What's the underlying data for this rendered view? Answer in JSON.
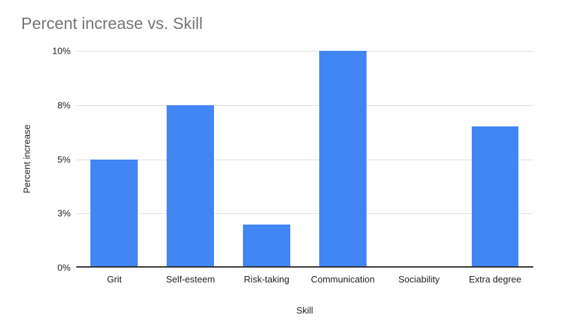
{
  "chart_data": {
    "type": "bar",
    "title": "Percent increase vs. Skill",
    "xlabel": "Skill",
    "ylabel": "Percent increase",
    "categories": [
      "Grit",
      "Self-esteem",
      "Risk-taking",
      "Communication",
      "Sociability",
      "Extra degree"
    ],
    "values": [
      5,
      7.5,
      2,
      10,
      0,
      6.5
    ],
    "ylim": [
      0,
      10
    ],
    "y_ticks": [
      {
        "label": "0%",
        "value": 0
      },
      {
        "label": "3%",
        "value": 2.5
      },
      {
        "label": "5%",
        "value": 5
      },
      {
        "label": "8%",
        "value": 7.5
      },
      {
        "label": "10%",
        "value": 10
      }
    ],
    "grid": true,
    "legend_position": "none",
    "bar_color": "#4285f4"
  },
  "colors": {
    "background": "#ffffff",
    "title_text": "#757575",
    "axis_text": "#222222",
    "gridline": "#e0e0e0",
    "baseline": "#333333"
  }
}
